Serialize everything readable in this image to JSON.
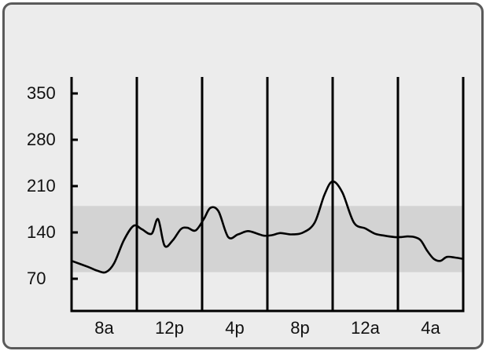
{
  "chart_data": {
    "type": "line",
    "title": "",
    "xlabel": "",
    "ylabel": "",
    "y_ticks": [
      "350",
      "280",
      "210",
      "140",
      "70"
    ],
    "x_ticks": [
      "8a",
      "12p",
      "4p",
      "8p",
      "12a",
      "4a"
    ],
    "ylim": [
      45,
      385
    ],
    "x_range_hours": [
      0,
      24
    ],
    "target_range": {
      "low": 80,
      "high": 180,
      "color": "#d3d3d3"
    },
    "series": [
      {
        "line_color": "#000000",
        "x": [
          0,
          1,
          1.6,
          2.1,
          2.6,
          3.2,
          3.8,
          4.3,
          4.9,
          5.3,
          5.7,
          6.2,
          6.7,
          7.1,
          7.6,
          8.1,
          8.5,
          9.0,
          9.6,
          10.2,
          10.8,
          11.4,
          11.8,
          12.3,
          12.8,
          13.5,
          14.2,
          14.9,
          15.5,
          16.0,
          16.6,
          17.3,
          18.0,
          18.6,
          19.2,
          19.8,
          20.2,
          20.6,
          21.0,
          21.4,
          21.8,
          22.2,
          22.6,
          23.0,
          23.5,
          24.0
        ],
        "y": [
          97,
          88,
          82,
          80,
          93,
          128,
          150,
          145,
          138,
          160,
          120,
          128,
          145,
          147,
          143,
          160,
          177,
          172,
          133,
          137,
          142,
          138,
          135,
          136,
          139,
          137,
          140,
          155,
          197,
          217,
          200,
          155,
          146,
          138,
          135,
          133,
          133,
          134,
          133,
          128,
          112,
          100,
          97,
          103,
          102,
          100
        ]
      }
    ],
    "axis_color": "#000000",
    "background": "#ececec",
    "frame_color": "#5a5a5a"
  }
}
